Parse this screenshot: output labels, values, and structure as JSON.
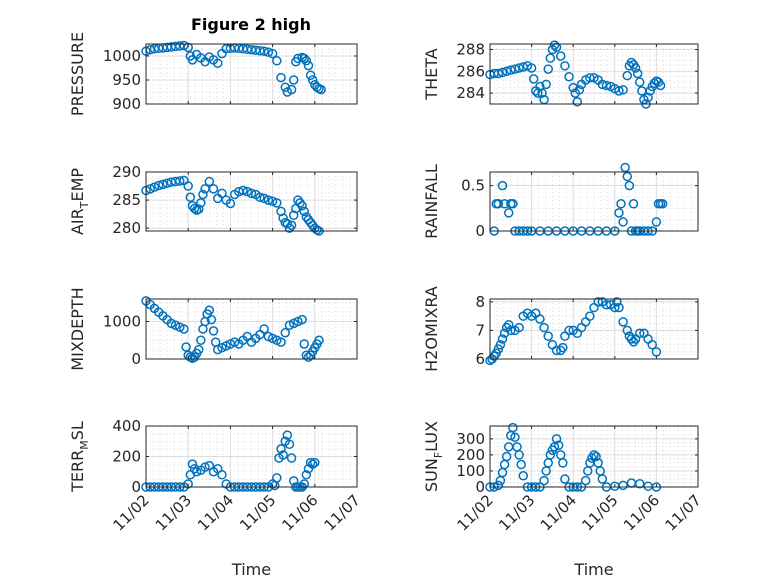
{
  "figure_title": "Figure 2 high",
  "marker_color": "#0072BD",
  "chart_data": [
    {
      "type": "scatter",
      "title": "Figure 2 high",
      "ylabel": "PRESSURE",
      "xlabel": "",
      "ylim": [
        900,
        1025
      ],
      "yticks": [
        900,
        950,
        1000
      ],
      "ytick_labels": [
        "900",
        "950",
        "1000"
      ],
      "xlim": [
        0,
        5
      ],
      "xtick_labels": [],
      "grid": true,
      "x": [
        0,
        0.1,
        0.2,
        0.3,
        0.4,
        0.5,
        0.6,
        0.7,
        0.8,
        0.9,
        1.0,
        1.05,
        1.1,
        1.2,
        1.3,
        1.4,
        1.5,
        1.6,
        1.7,
        1.8,
        1.9,
        2.0,
        2.1,
        2.2,
        2.3,
        2.4,
        2.5,
        2.6,
        2.7,
        2.8,
        2.9,
        3.0,
        3.1,
        3.2,
        3.3,
        3.35,
        3.45,
        3.5,
        3.55,
        3.6,
        3.7,
        3.75,
        3.8,
        3.85,
        3.9,
        3.95,
        4.0,
        4.05,
        4.1,
        4.15
      ],
      "y": [
        1010,
        1013,
        1015,
        1016,
        1017,
        1018,
        1019,
        1020,
        1021,
        1022,
        1018,
        1000,
        992,
        1003,
        996,
        988,
        998,
        992,
        985,
        1005,
        1015,
        1016,
        1017,
        1016,
        1015,
        1014,
        1013,
        1012,
        1011,
        1010,
        1008,
        1005,
        990,
        955,
        935,
        925,
        930,
        950,
        988,
        995,
        997,
        995,
        990,
        980,
        960,
        950,
        940,
        935,
        932,
        930
      ]
    },
    {
      "type": "scatter",
      "ylabel": "THETA",
      "xlabel": "",
      "ylim": [
        283,
        288.5
      ],
      "yticks": [
        284,
        286,
        288
      ],
      "ytick_labels": [
        "284",
        "286",
        "288"
      ],
      "xlim": [
        0,
        5
      ],
      "xtick_labels": [],
      "grid": true,
      "x": [
        0,
        0.1,
        0.2,
        0.3,
        0.4,
        0.5,
        0.6,
        0.7,
        0.8,
        0.9,
        1.0,
        1.05,
        1.1,
        1.15,
        1.2,
        1.25,
        1.3,
        1.35,
        1.4,
        1.45,
        1.5,
        1.55,
        1.6,
        1.7,
        1.8,
        1.9,
        2.0,
        2.05,
        2.1,
        2.15,
        2.2,
        2.3,
        2.4,
        2.5,
        2.6,
        2.7,
        2.8,
        2.9,
        3.0,
        3.1,
        3.2,
        3.3,
        3.35,
        3.4,
        3.45,
        3.5,
        3.55,
        3.6,
        3.65,
        3.7,
        3.75,
        3.8,
        3.85,
        3.9,
        3.95,
        4.0,
        4.05,
        4.1
      ],
      "y": [
        285.7,
        285.8,
        285.8,
        285.9,
        286.0,
        286.1,
        286.2,
        286.3,
        286.4,
        286.5,
        286.3,
        285.3,
        284.2,
        284.0,
        284.6,
        284.0,
        283.4,
        284.8,
        286.2,
        287.2,
        288.0,
        288.4,
        288.2,
        287.4,
        286.5,
        285.5,
        284.5,
        284.0,
        283.2,
        284.3,
        284.8,
        285.2,
        285.4,
        285.4,
        285.2,
        284.8,
        284.7,
        284.6,
        284.4,
        284.2,
        284.3,
        285.6,
        286.5,
        286.8,
        286.6,
        286.3,
        285.8,
        285.0,
        284.2,
        283.4,
        283.0,
        283.6,
        284.2,
        284.6,
        284.9,
        285.1,
        285.0,
        284.7
      ]
    },
    {
      "type": "scatter",
      "ylabel": "AIR_TEMP",
      "ylabel_display": {
        "main": "AIR",
        "sub": "T",
        "rest": "EMP"
      },
      "xlabel": "",
      "ylim": [
        279.5,
        290
      ],
      "yticks": [
        280,
        285,
        290
      ],
      "ytick_labels": [
        "280",
        "285",
        "290"
      ],
      "xlim": [
        0,
        5
      ],
      "xtick_labels": [],
      "grid": true,
      "x": [
        0,
        0.1,
        0.2,
        0.3,
        0.4,
        0.5,
        0.6,
        0.7,
        0.8,
        0.9,
        1.0,
        1.05,
        1.1,
        1.15,
        1.2,
        1.25,
        1.3,
        1.35,
        1.4,
        1.5,
        1.6,
        1.7,
        1.8,
        1.9,
        2.0,
        2.1,
        2.2,
        2.3,
        2.4,
        2.5,
        2.6,
        2.7,
        2.8,
        2.9,
        3.0,
        3.1,
        3.2,
        3.25,
        3.3,
        3.35,
        3.4,
        3.45,
        3.5,
        3.55,
        3.6,
        3.65,
        3.7,
        3.75,
        3.8,
        3.85,
        3.9,
        3.95,
        4.0,
        4.05,
        4.1
      ],
      "y": [
        286.7,
        287.0,
        287.3,
        287.6,
        287.8,
        288.0,
        288.2,
        288.3,
        288.4,
        288.5,
        287.5,
        285.5,
        284.0,
        283.5,
        283.2,
        283.4,
        284.5,
        286.0,
        287.0,
        288.3,
        287.0,
        285.3,
        286.2,
        285.0,
        284.4,
        286.0,
        286.5,
        286.7,
        286.5,
        286.2,
        286.0,
        285.5,
        285.3,
        285.0,
        284.8,
        284.5,
        283.0,
        281.8,
        281.0,
        280.8,
        280.0,
        280.5,
        282.3,
        283.5,
        285.0,
        284.5,
        284.0,
        283.0,
        282.0,
        281.5,
        281.0,
        280.5,
        280.0,
        279.7,
        279.5
      ]
    },
    {
      "type": "scatter",
      "ylabel": "RAINFALL",
      "xlabel": "",
      "ylim": [
        0,
        0.65
      ],
      "yticks": [
        0,
        0.5
      ],
      "ytick_labels": [
        "0",
        "0.5"
      ],
      "xlim": [
        0,
        5
      ],
      "xtick_labels": [],
      "grid": true,
      "x": [
        0.1,
        0.15,
        0.2,
        0.3,
        0.35,
        0.45,
        0.5,
        0.55,
        0.6,
        0.7,
        0.8,
        0.9,
        1.0,
        1.2,
        1.4,
        1.6,
        1.8,
        2.0,
        2.2,
        2.4,
        2.6,
        2.8,
        3.0,
        3.1,
        3.15,
        3.2,
        3.25,
        3.3,
        3.35,
        3.4,
        3.45,
        3.5,
        3.55,
        3.6,
        3.7,
        3.8,
        3.9,
        4.0,
        4.05,
        4.1,
        4.15
      ],
      "y": [
        0,
        0.3,
        0.3,
        0.5,
        0.3,
        0.2,
        0.3,
        0.3,
        0,
        0,
        0,
        0,
        0,
        0,
        0,
        0,
        0,
        0,
        0,
        0,
        0,
        0,
        0,
        0.2,
        0.3,
        0.1,
        0.7,
        0.6,
        0.5,
        0,
        0.3,
        0,
        0,
        0,
        0,
        0,
        0,
        0.1,
        0.3,
        0.3,
        0.3
      ]
    },
    {
      "type": "scatter",
      "ylabel": "MIXDEPTH",
      "xlabel": "",
      "ylim": [
        0,
        1600
      ],
      "yticks": [
        0,
        1000
      ],
      "ytick_labels": [
        "0",
        "1000"
      ],
      "xlim": [
        0,
        5
      ],
      "xtick_labels": [],
      "grid": true,
      "x": [
        0,
        0.1,
        0.2,
        0.3,
        0.4,
        0.5,
        0.6,
        0.7,
        0.8,
        0.9,
        0.95,
        1.0,
        1.05,
        1.1,
        1.15,
        1.2,
        1.25,
        1.3,
        1.35,
        1.4,
        1.45,
        1.5,
        1.55,
        1.6,
        1.65,
        1.7,
        1.8,
        1.9,
        2.0,
        2.1,
        2.2,
        2.3,
        2.4,
        2.5,
        2.6,
        2.7,
        2.8,
        2.9,
        3.0,
        3.1,
        3.2,
        3.3,
        3.4,
        3.5,
        3.6,
        3.7,
        3.75,
        3.8,
        3.85,
        3.9,
        3.95,
        4.0,
        4.05,
        4.1
      ],
      "y": [
        1550,
        1450,
        1350,
        1250,
        1150,
        1050,
        950,
        900,
        850,
        800,
        320,
        100,
        50,
        20,
        50,
        150,
        250,
        500,
        800,
        1000,
        1200,
        1300,
        1050,
        750,
        450,
        250,
        300,
        350,
        400,
        450,
        400,
        500,
        600,
        450,
        550,
        650,
        800,
        600,
        550,
        500,
        450,
        700,
        900,
        950,
        1000,
        1050,
        400,
        100,
        50,
        100,
        200,
        300,
        400,
        500
      ]
    },
    {
      "type": "scatter",
      "ylabel": "H2OMIXRA",
      "xlabel": "",
      "ylim": [
        6,
        8.1
      ],
      "yticks": [
        6,
        7,
        8
      ],
      "ytick_labels": [
        "6",
        "7",
        "8"
      ],
      "xlim": [
        0,
        5
      ],
      "xtick_labels": [],
      "grid": true,
      "x": [
        0,
        0.05,
        0.1,
        0.15,
        0.2,
        0.25,
        0.3,
        0.35,
        0.4,
        0.45,
        0.5,
        0.6,
        0.7,
        0.8,
        0.9,
        1.0,
        1.1,
        1.2,
        1.3,
        1.4,
        1.5,
        1.6,
        1.7,
        1.75,
        1.8,
        1.9,
        2.0,
        2.1,
        2.2,
        2.3,
        2.4,
        2.5,
        2.6,
        2.7,
        2.8,
        2.9,
        3.0,
        3.05,
        3.1,
        3.2,
        3.3,
        3.35,
        3.4,
        3.45,
        3.5,
        3.6,
        3.7,
        3.8,
        3.9,
        4.0
      ],
      "y": [
        5.95,
        6.0,
        6.1,
        6.2,
        6.35,
        6.5,
        6.7,
        6.9,
        7.1,
        7.2,
        7.0,
        7.0,
        7.1,
        7.5,
        7.6,
        7.5,
        7.6,
        7.4,
        7.1,
        6.8,
        6.5,
        6.3,
        6.3,
        6.4,
        6.8,
        7.0,
        7.0,
        6.9,
        7.1,
        7.3,
        7.5,
        7.8,
        8.0,
        8.0,
        7.9,
        7.9,
        7.8,
        8.0,
        7.8,
        7.3,
        7.0,
        6.8,
        6.7,
        6.6,
        6.7,
        6.9,
        6.9,
        6.7,
        6.5,
        6.25
      ]
    },
    {
      "type": "scatter",
      "ylabel": "TERR_MSL",
      "ylabel_display": {
        "main": "TERR",
        "sub": "M",
        "rest": "SL"
      },
      "xlabel": "Time",
      "ylim": [
        0,
        400
      ],
      "yticks": [
        0,
        200,
        400
      ],
      "ytick_labels": [
        "0",
        "200",
        "400"
      ],
      "xlim": [
        0,
        5
      ],
      "xtick_labels": [
        "11/02",
        "11/03",
        "11/04",
        "11/05",
        "11/06",
        "11/07"
      ],
      "grid": true,
      "x": [
        0,
        0.1,
        0.2,
        0.3,
        0.4,
        0.5,
        0.6,
        0.7,
        0.8,
        0.9,
        1.0,
        1.05,
        1.1,
        1.15,
        1.2,
        1.3,
        1.4,
        1.5,
        1.6,
        1.7,
        1.8,
        1.9,
        2.0,
        2.1,
        2.2,
        2.3,
        2.4,
        2.5,
        2.6,
        2.7,
        2.8,
        2.9,
        3.0,
        3.05,
        3.1,
        3.15,
        3.2,
        3.25,
        3.3,
        3.35,
        3.4,
        3.45,
        3.5,
        3.55,
        3.6,
        3.65,
        3.7,
        3.75,
        3.8,
        3.85,
        3.9,
        3.95,
        4.0
      ],
      "y": [
        0,
        0,
        0,
        0,
        0,
        0,
        0,
        0,
        0,
        0,
        20,
        80,
        150,
        120,
        100,
        110,
        130,
        140,
        100,
        120,
        80,
        20,
        0,
        0,
        0,
        0,
        0,
        0,
        0,
        0,
        0,
        0,
        20,
        10,
        60,
        190,
        250,
        210,
        300,
        340,
        280,
        190,
        40,
        0,
        0,
        0,
        0,
        20,
        80,
        120,
        160,
        150,
        160
      ]
    },
    {
      "type": "scatter",
      "ylabel": "SUN_FLUX",
      "ylabel_display": {
        "main": "SUN",
        "sub": "F",
        "rest": "LUX"
      },
      "xlabel": "Time",
      "ylim": [
        0,
        380
      ],
      "yticks": [
        0,
        100,
        200,
        300
      ],
      "ytick_labels": [
        "0",
        "100",
        "200",
        "300"
      ],
      "xlim": [
        0,
        5
      ],
      "xtick_labels": [
        "11/02",
        "11/03",
        "11/04",
        "11/05",
        "11/06",
        "11/07"
      ],
      "grid": true,
      "x": [
        0,
        0.1,
        0.2,
        0.25,
        0.3,
        0.35,
        0.4,
        0.45,
        0.5,
        0.55,
        0.6,
        0.65,
        0.7,
        0.75,
        0.8,
        0.9,
        1.0,
        1.1,
        1.2,
        1.3,
        1.35,
        1.4,
        1.45,
        1.5,
        1.55,
        1.6,
        1.65,
        1.7,
        1.75,
        1.8,
        1.9,
        2.0,
        2.1,
        2.2,
        2.3,
        2.35,
        2.4,
        2.45,
        2.5,
        2.55,
        2.6,
        2.65,
        2.7,
        2.8,
        3.0,
        3.2,
        3.4,
        3.6,
        3.8,
        4.0
      ],
      "y": [
        0,
        0,
        10,
        40,
        90,
        140,
        190,
        250,
        320,
        370,
        310,
        250,
        200,
        140,
        70,
        0,
        0,
        0,
        0,
        40,
        100,
        150,
        200,
        230,
        250,
        300,
        260,
        200,
        150,
        50,
        0,
        0,
        0,
        0,
        40,
        100,
        150,
        180,
        200,
        190,
        150,
        100,
        50,
        0,
        5,
        10,
        25,
        20,
        5,
        0
      ]
    }
  ]
}
